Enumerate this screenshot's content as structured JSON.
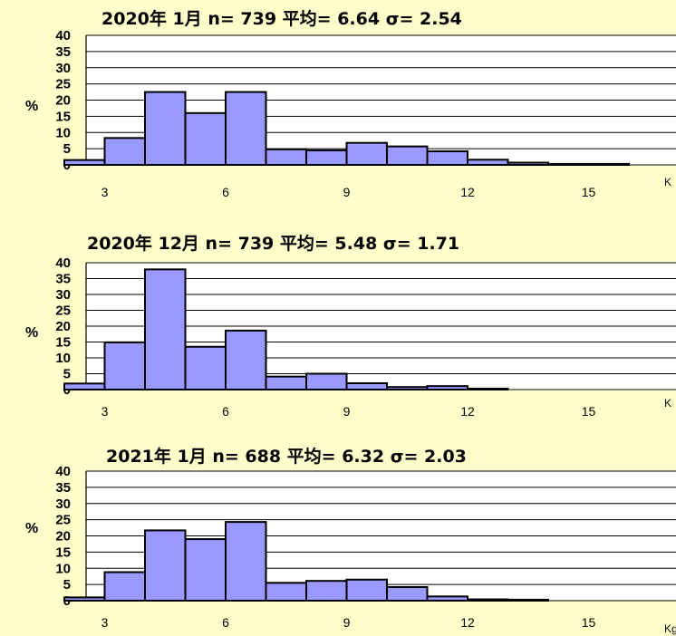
{
  "colors": {
    "background": "#FFFFCC",
    "bar_fill": "#9999FF",
    "bar_stroke": "#000000",
    "plot_bg": "#FFFFFF"
  },
  "chart_data": [
    {
      "type": "bar",
      "title": "2020年 1月   n= 739 平均= 6.64 σ= 2.54",
      "ylabel": "%",
      "xunit": "K",
      "ylim": [
        0,
        40
      ],
      "yticks": [
        "40",
        "35",
        "30",
        "25",
        "20",
        "15",
        "10",
        "5",
        "0"
      ],
      "xticks": [
        "3",
        "6",
        "9",
        "12",
        "15"
      ],
      "categories": [
        2.5,
        3.5,
        4.5,
        5.5,
        6.5,
        7.5,
        8.5,
        9.5,
        10.5,
        11.5,
        12.5,
        13.5,
        14.5,
        15.5
      ],
      "values": [
        1.5,
        8.3,
        22.5,
        16.0,
        22.5,
        4.8,
        4.5,
        6.8,
        5.7,
        4.2,
        1.6,
        0.7,
        0.3,
        0.3
      ],
      "grid": true,
      "legend": "none"
    },
    {
      "type": "bar",
      "title": "2020年 12月   n= 739 平均= 5.48  σ= 1.71",
      "ylabel": "%",
      "xunit": "K",
      "ylim": [
        0,
        40
      ],
      "yticks": [
        "40",
        "35",
        "30",
        "25",
        "20",
        "15",
        "10",
        "5",
        "0"
      ],
      "xticks": [
        "3",
        "6",
        "9",
        "12",
        "15"
      ],
      "categories": [
        2.5,
        3.5,
        4.5,
        5.5,
        6.5,
        7.5,
        8.5,
        9.5,
        10.5,
        11.5,
        12.5
      ],
      "values": [
        1.9,
        14.9,
        37.9,
        13.5,
        18.6,
        4.1,
        5.0,
        2.0,
        0.8,
        1.1,
        0.3
      ],
      "grid": true,
      "legend": "none"
    },
    {
      "type": "bar",
      "title": "2021年  1月   n= 688 平均= 6.32 σ= 2.03",
      "ylabel": "%",
      "xunit": "Kg",
      "ylim": [
        0,
        40
      ],
      "yticks": [
        "40",
        "35",
        "30",
        "25",
        "20",
        "15",
        "10",
        "5",
        "0"
      ],
      "xticks": [
        "3",
        "6",
        "9",
        "12",
        "15"
      ],
      "categories": [
        2.5,
        3.5,
        4.5,
        5.5,
        6.5,
        7.5,
        8.5,
        9.5,
        10.5,
        11.5,
        12.5,
        13.5
      ],
      "values": [
        1.0,
        8.8,
        21.7,
        19.0,
        24.3,
        5.5,
        6.1,
        6.5,
        4.2,
        1.3,
        0.4,
        0.3
      ],
      "grid": true,
      "legend": "none"
    }
  ]
}
